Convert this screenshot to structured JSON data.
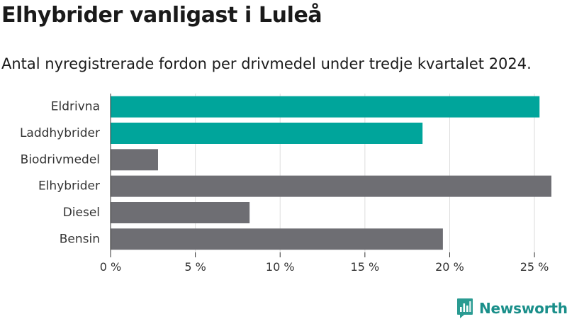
{
  "header": {
    "title": "Elhybrider vanligast i Luleå",
    "subtitle": "Antal nyregistrerade fordon per drivmedel under tredje kvartalet 2024."
  },
  "brand": {
    "name": "Newsworthy",
    "color": "#1a8f8a"
  },
  "colors": {
    "highlight": "#00a59b",
    "default": "#6e6e73",
    "grid": "#dddddd",
    "axis": "#333333"
  },
  "chart_data": {
    "type": "bar",
    "orientation": "horizontal",
    "categories": [
      "Eldrivna",
      "Laddhybrider",
      "Biodrivmedel",
      "Elhybrider",
      "Diesel",
      "Bensin"
    ],
    "values": [
      25.3,
      18.4,
      2.8,
      26.0,
      8.2,
      19.6
    ],
    "highlighted": [
      "Eldrivna",
      "Laddhybrider"
    ],
    "xlim": [
      0,
      26
    ],
    "xticks": [
      0,
      5,
      10,
      15,
      20,
      25
    ],
    "xtick_labels": [
      "0 %",
      "5 %",
      "10 %",
      "15 %",
      "20 %",
      "25 %"
    ],
    "grid": true,
    "title": "",
    "xlabel": "",
    "ylabel": ""
  }
}
